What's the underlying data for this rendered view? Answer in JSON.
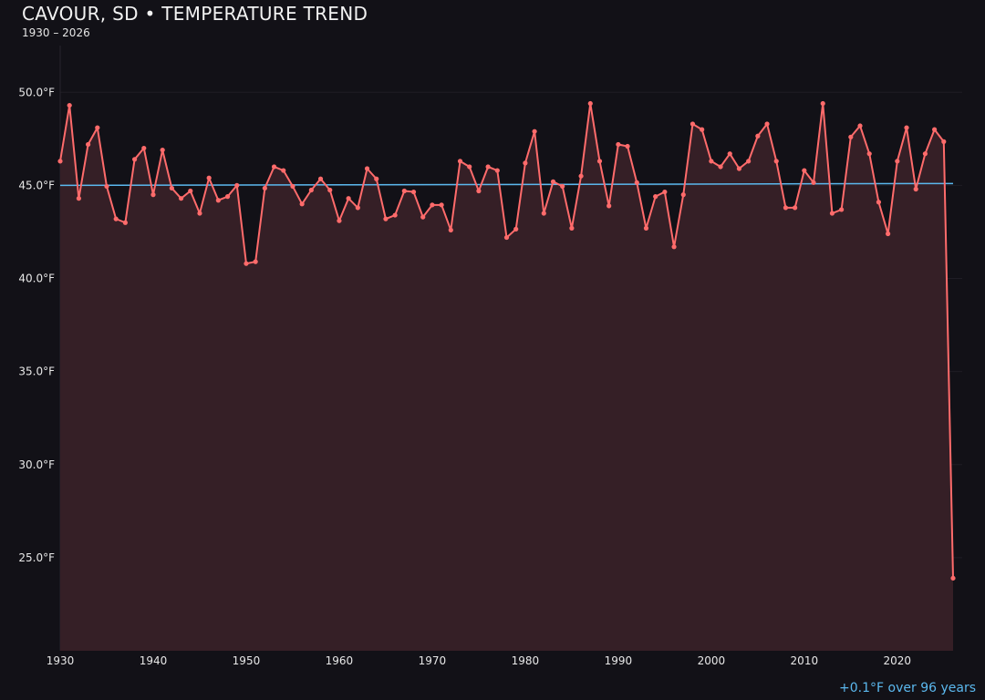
{
  "title": "CAVOUR, SD • TEMPERATURE TREND",
  "subtitle": "1930 – 2026",
  "trend_note": "+0.1°F over 96 years",
  "colors": {
    "background": "#121117",
    "series": "#ff6b6b",
    "area_fill": "#351f26",
    "trend": "#5bb8ee"
  },
  "chart_data": {
    "type": "line",
    "title": "CAVOUR, SD • TEMPERATURE TREND",
    "subtitle": "1930 – 2026",
    "xlabel": "",
    "ylabel": "",
    "xlim": [
      1930,
      2027
    ],
    "ylim": [
      20,
      53
    ],
    "grid": true,
    "area_fill": true,
    "x_ticks": [
      1930,
      1940,
      1950,
      1960,
      1970,
      1980,
      1990,
      2000,
      2010,
      2020
    ],
    "y_ticks": [
      25,
      30,
      35,
      40,
      45,
      50
    ],
    "y_tick_labels": [
      "25.0°F",
      "30.0°F",
      "35.0°F",
      "40.0°F",
      "45.0°F",
      "50.0°F"
    ],
    "x": [
      1930,
      1931,
      1932,
      1933,
      1934,
      1935,
      1936,
      1937,
      1938,
      1939,
      1940,
      1941,
      1942,
      1943,
      1944,
      1945,
      1946,
      1947,
      1948,
      1949,
      1950,
      1951,
      1952,
      1953,
      1954,
      1955,
      1956,
      1957,
      1958,
      1959,
      1960,
      1961,
      1962,
      1963,
      1964,
      1965,
      1966,
      1967,
      1968,
      1969,
      1970,
      1971,
      1972,
      1973,
      1974,
      1975,
      1976,
      1977,
      1978,
      1979,
      1980,
      1981,
      1982,
      1983,
      1984,
      1985,
      1986,
      1987,
      1988,
      1989,
      1990,
      1991,
      1992,
      1993,
      1994,
      1995,
      1996,
      1997,
      1998,
      1999,
      2000,
      2001,
      2002,
      2003,
      2004,
      2005,
      2006,
      2007,
      2008,
      2009,
      2010,
      2011,
      2012,
      2013,
      2014,
      2015,
      2016,
      2017,
      2018,
      2019,
      2020,
      2021,
      2022,
      2023,
      2024,
      2025,
      2026
    ],
    "values": [
      46.3,
      49.3,
      44.3,
      47.2,
      48.1,
      44.95,
      43.2,
      43.0,
      46.4,
      47.0,
      44.5,
      46.9,
      44.85,
      44.3,
      44.7,
      43.5,
      45.4,
      44.2,
      44.4,
      45.0,
      40.8,
      40.9,
      44.85,
      46.0,
      45.8,
      44.95,
      44.0,
      44.75,
      45.35,
      44.75,
      43.1,
      44.3,
      43.8,
      45.9,
      45.35,
      43.2,
      43.4,
      44.7,
      44.65,
      43.3,
      43.95,
      43.95,
      42.6,
      46.3,
      46.0,
      44.7,
      46.0,
      45.8,
      42.2,
      42.65,
      46.2,
      47.9,
      43.5,
      45.2,
      44.95,
      42.7,
      45.5,
      49.4,
      46.3,
      43.9,
      47.2,
      47.1,
      45.15,
      42.7,
      44.4,
      44.65,
      41.7,
      44.5,
      48.3,
      48.0,
      46.3,
      46.0,
      46.7,
      45.9,
      46.3,
      47.65,
      48.3,
      46.3,
      43.8,
      43.8,
      45.8,
      45.15,
      49.4,
      43.5,
      43.7,
      47.6,
      48.2,
      46.7,
      44.1,
      42.4,
      46.3,
      48.1,
      44.8,
      46.7,
      48.0,
      47.35,
      23.9
    ],
    "trend_line": {
      "x": [
        1930,
        2026
      ],
      "y": [
        45.0,
        45.1
      ]
    }
  }
}
